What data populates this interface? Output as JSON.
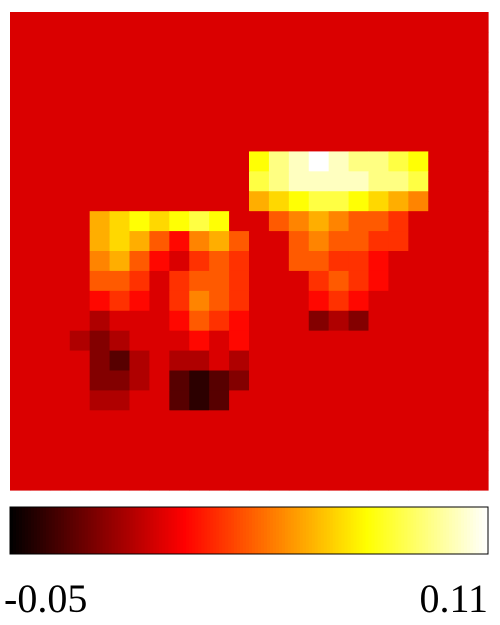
{
  "chart_data": {
    "type": "heatmap",
    "colormap": "hot",
    "clim": [
      -0.05,
      0.11
    ],
    "colorbar_ticks": [
      -0.05,
      0.11
    ],
    "z": [
      [
        0,
        0,
        0,
        0,
        0,
        0,
        0,
        0,
        0,
        0,
        0,
        0,
        0,
        0,
        0,
        0,
        0,
        0,
        0,
        0,
        0,
        0,
        0,
        0
      ],
      [
        0,
        0,
        0,
        0,
        0,
        0,
        0,
        0,
        0,
        0,
        0,
        0,
        0,
        0,
        0,
        0,
        0,
        0,
        0,
        0,
        0,
        0,
        0,
        0
      ],
      [
        0,
        0,
        0,
        0,
        0,
        0,
        0,
        0,
        0,
        0,
        0,
        0,
        0,
        0,
        0,
        0,
        0,
        0,
        0,
        0,
        0,
        0,
        0,
        0
      ],
      [
        0,
        0,
        0,
        0,
        0,
        0,
        0,
        0,
        0,
        0,
        0,
        0,
        0,
        0,
        0,
        0,
        0,
        0,
        0,
        0,
        0,
        0,
        0,
        0
      ],
      [
        0,
        0,
        0,
        0,
        0,
        0,
        0,
        0,
        0,
        0,
        0,
        0,
        0,
        0,
        0,
        0,
        0,
        0,
        0,
        0,
        0,
        0,
        0,
        0
      ],
      [
        0,
        0,
        0,
        0,
        0,
        0,
        0,
        0,
        0,
        0,
        0,
        0,
        0,
        0,
        0,
        0,
        0,
        0,
        0,
        0,
        0,
        0,
        0,
        0
      ],
      [
        0,
        0,
        0,
        0,
        0,
        0,
        0,
        0,
        0,
        0,
        0,
        0,
        0,
        0,
        0,
        0,
        0,
        0,
        0,
        0,
        0,
        0,
        0,
        0
      ],
      [
        0,
        0,
        0,
        0,
        0,
        0,
        0,
        0,
        0,
        0,
        0,
        0,
        0.07,
        0.09,
        0.1,
        0.11,
        0.1,
        0.09,
        0.09,
        0.08,
        0.07,
        0,
        0,
        0
      ],
      [
        0,
        0,
        0,
        0,
        0,
        0,
        0,
        0,
        0,
        0,
        0,
        0,
        0.08,
        0.09,
        0.1,
        0.1,
        0.1,
        0.1,
        0.09,
        0.09,
        0.08,
        0,
        0,
        0
      ],
      [
        0,
        0,
        0,
        0,
        0,
        0,
        0,
        0,
        0,
        0,
        0,
        0,
        0.05,
        0.06,
        0.07,
        0.08,
        0.08,
        0.07,
        0.06,
        0.05,
        0.04,
        0,
        0,
        0
      ],
      [
        0,
        0,
        0,
        0,
        0.05,
        0.06,
        0.07,
        0.06,
        0.07,
        0.08,
        0.07,
        0,
        0,
        0.03,
        0.04,
        0.05,
        0.04,
        0.03,
        0.03,
        0.02,
        0,
        0,
        0,
        0
      ],
      [
        0,
        0,
        0,
        0,
        0.05,
        0.06,
        0.05,
        0.03,
        0.01,
        0.04,
        0.05,
        0.03,
        0,
        0,
        0.03,
        0.04,
        0.03,
        0.03,
        0.02,
        0.02,
        0,
        0,
        0,
        0
      ],
      [
        0,
        0,
        0,
        0,
        0.04,
        0.05,
        0.03,
        0.01,
        0,
        0.02,
        0.03,
        0.02,
        0,
        0,
        0.03,
        0.03,
        0.02,
        0.02,
        0.01,
        0,
        0,
        0,
        0,
        0
      ],
      [
        0,
        0,
        0,
        0,
        0.03,
        0.03,
        0.02,
        0,
        0.02,
        0.03,
        0.03,
        0.02,
        0,
        0,
        0,
        0.02,
        0.03,
        0.02,
        0.01,
        0,
        0,
        0,
        0,
        0
      ],
      [
        0,
        0,
        0,
        0,
        0.01,
        0.02,
        0.01,
        0,
        0.02,
        0.04,
        0.03,
        0.02,
        0,
        0,
        0,
        0.01,
        0.02,
        0.01,
        0,
        0,
        0,
        0,
        0,
        0
      ],
      [
        0,
        0,
        0,
        0,
        -0.01,
        0,
        0,
        0,
        0.01,
        0.03,
        0.02,
        0.01,
        0,
        0,
        0,
        -0.02,
        -0.01,
        -0.02,
        0,
        0,
        0,
        0,
        0,
        0
      ],
      [
        0,
        0,
        0,
        -0.01,
        -0.02,
        -0.01,
        0,
        0,
        0,
        0.01,
        0,
        0.01,
        0,
        0,
        0,
        0,
        0,
        0,
        0,
        0,
        0,
        0,
        0,
        0
      ],
      [
        0,
        0,
        0,
        0,
        -0.02,
        -0.03,
        -0.01,
        0,
        -0.01,
        -0.01,
        0,
        -0.01,
        0,
        0,
        0,
        0,
        0,
        0,
        0,
        0,
        0,
        0,
        0,
        0
      ],
      [
        0,
        0,
        0,
        0,
        -0.02,
        -0.02,
        -0.01,
        0,
        -0.03,
        -0.04,
        -0.03,
        -0.02,
        0,
        0,
        0,
        0,
        0,
        0,
        0,
        0,
        0,
        0,
        0,
        0
      ],
      [
        0,
        0,
        0,
        0,
        -0.01,
        -0.01,
        0,
        0,
        -0.03,
        -0.04,
        -0.03,
        0,
        0,
        0,
        0,
        0,
        0,
        0,
        0,
        0,
        0,
        0,
        0,
        0
      ],
      [
        0,
        0,
        0,
        0,
        0,
        0,
        0,
        0,
        0,
        0,
        0,
        0,
        0,
        0,
        0,
        0,
        0,
        0,
        0,
        0,
        0,
        0,
        0,
        0
      ],
      [
        0,
        0,
        0,
        0,
        0,
        0,
        0,
        0,
        0,
        0,
        0,
        0,
        0,
        0,
        0,
        0,
        0,
        0,
        0,
        0,
        0,
        0,
        0,
        0
      ],
      [
        0,
        0,
        0,
        0,
        0,
        0,
        0,
        0,
        0,
        0,
        0,
        0,
        0,
        0,
        0,
        0,
        0,
        0,
        0,
        0,
        0,
        0,
        0,
        0
      ],
      [
        0,
        0,
        0,
        0,
        0,
        0,
        0,
        0,
        0,
        0,
        0,
        0,
        0,
        0,
        0,
        0,
        0,
        0,
        0,
        0,
        0,
        0,
        0,
        0
      ]
    ]
  }
}
